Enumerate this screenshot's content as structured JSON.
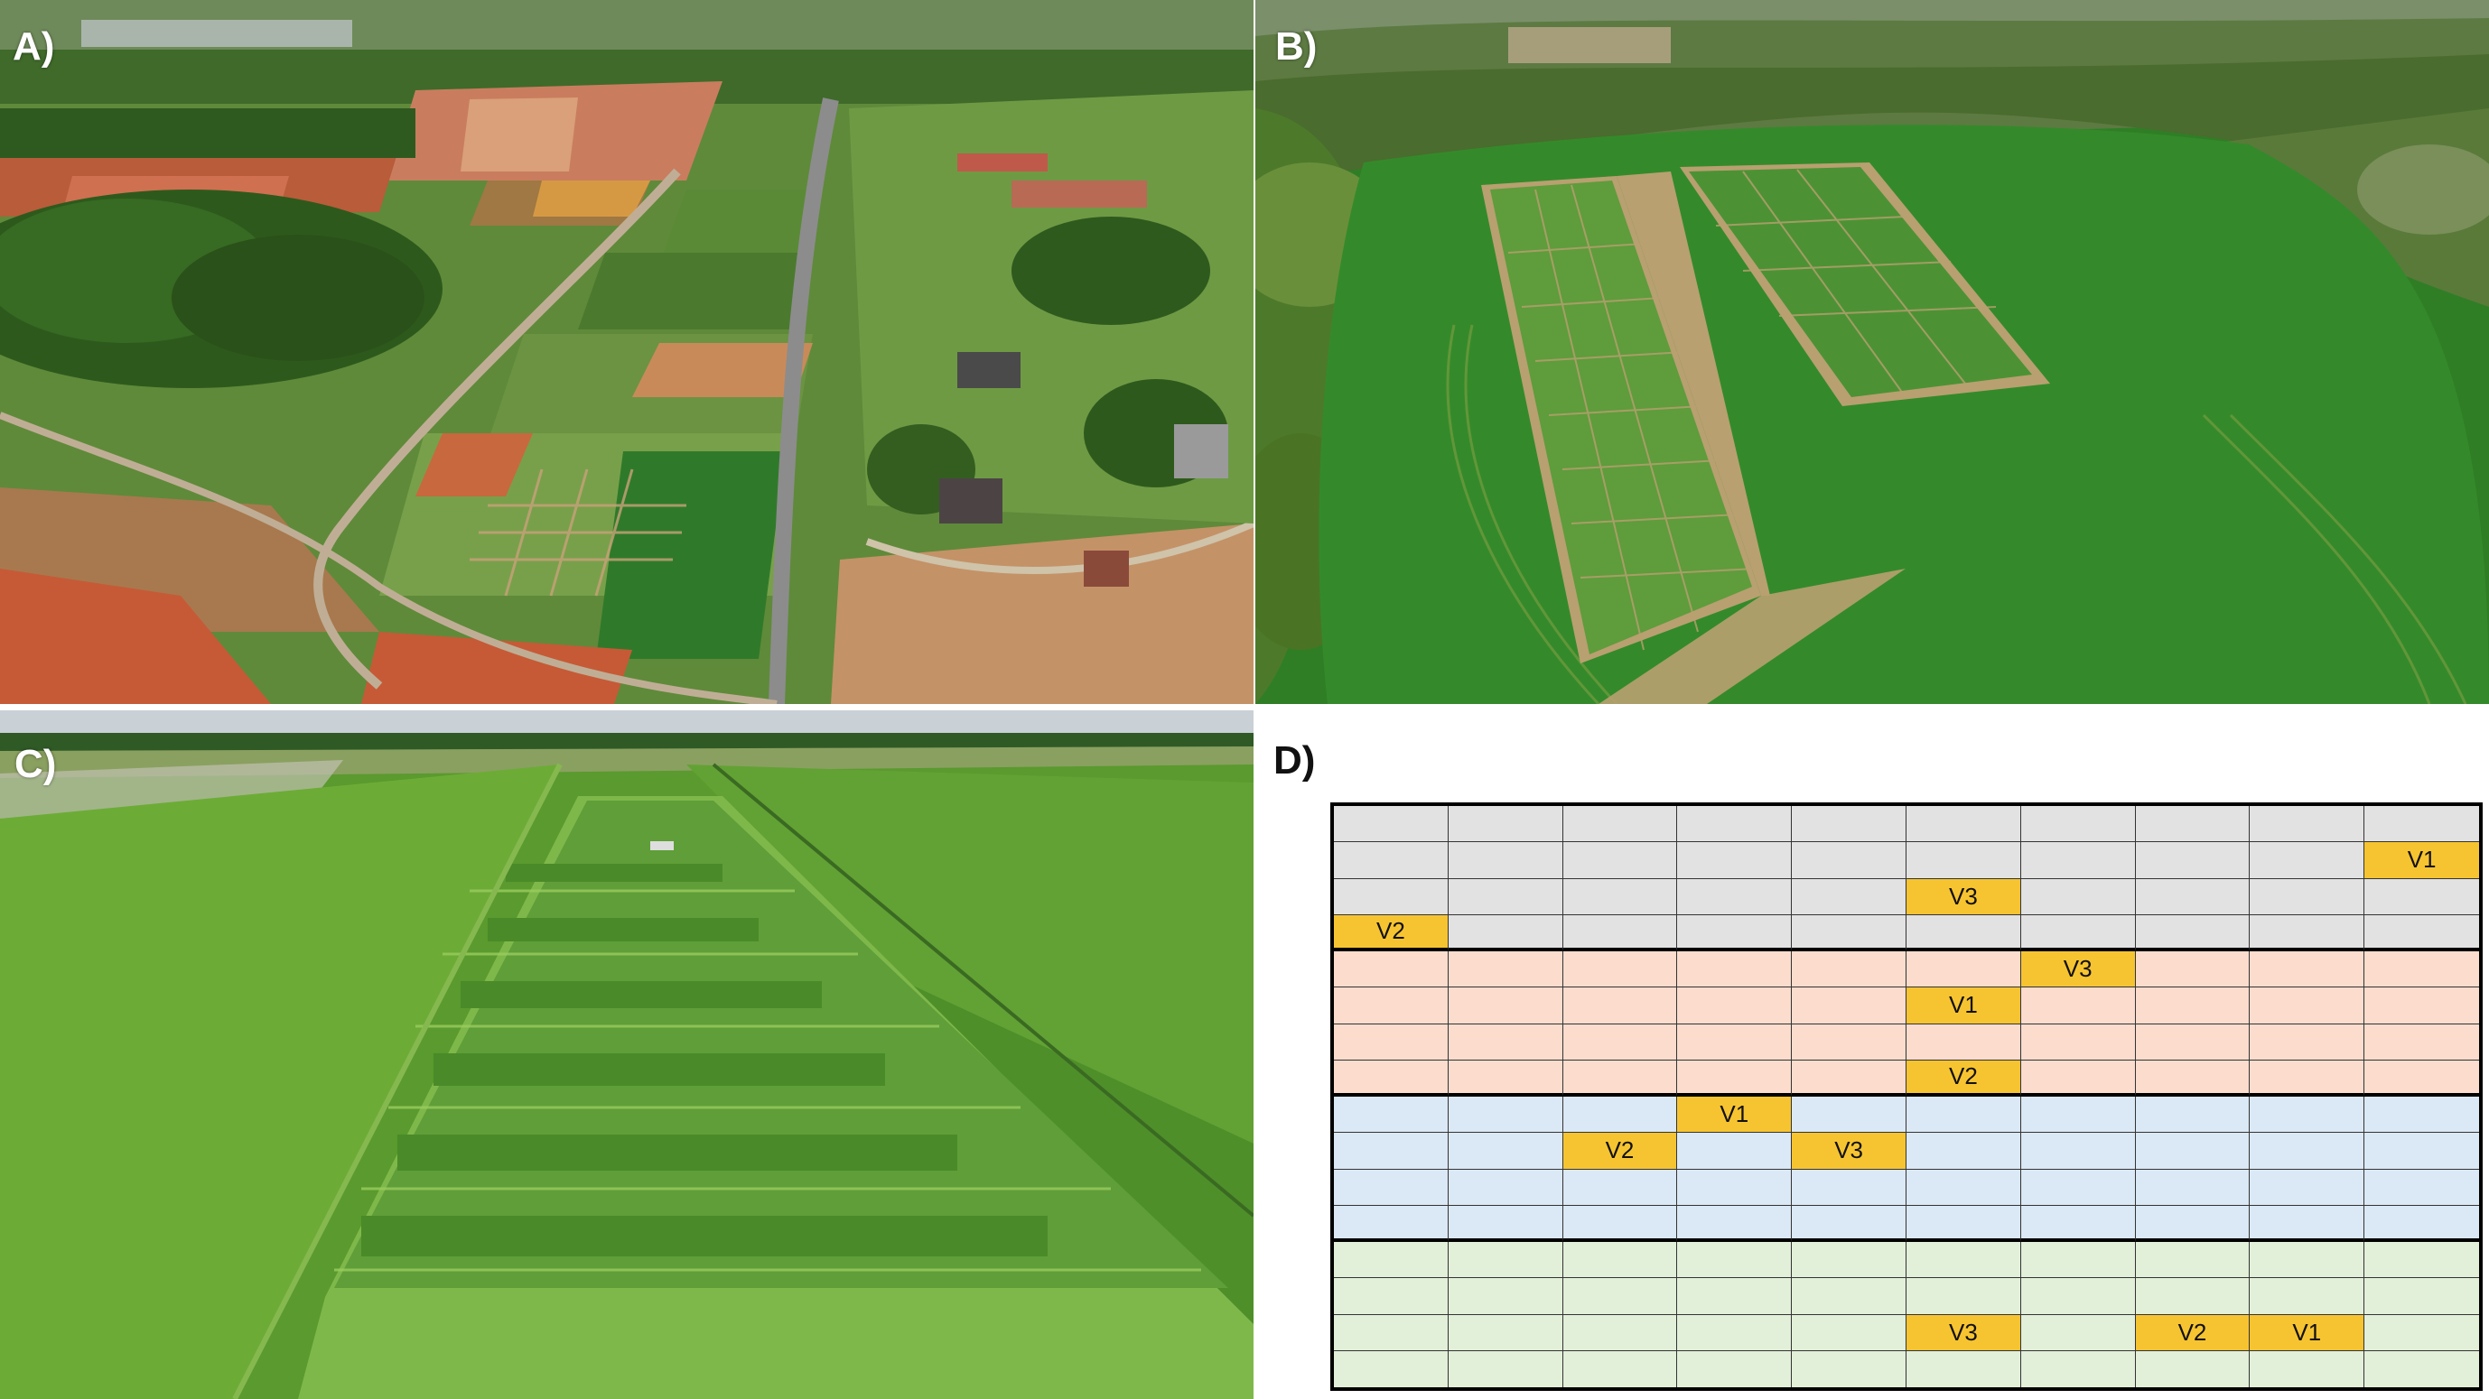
{
  "panels": {
    "a": {
      "label": "A)"
    },
    "b": {
      "label": "B)"
    },
    "c": {
      "label": "C)"
    },
    "d": {
      "label": "D)"
    }
  },
  "grid": {
    "columns": 10,
    "blocks": [
      {
        "rows": 4,
        "color": "#e2e2e2"
      },
      {
        "rows": 4,
        "color": "#fbdccd"
      },
      {
        "rows": 4,
        "color": "#dbe8f5"
      },
      {
        "rows": 4,
        "color": "#e2efd9"
      }
    ],
    "highlight_color": "#f7c431",
    "highlights": [
      {
        "row": 1,
        "col": 9,
        "label": "V1"
      },
      {
        "row": 2,
        "col": 5,
        "label": "V3"
      },
      {
        "row": 3,
        "col": 0,
        "label": "V2"
      },
      {
        "row": 4,
        "col": 6,
        "label": "V3"
      },
      {
        "row": 5,
        "col": 5,
        "label": "V1"
      },
      {
        "row": 7,
        "col": 5,
        "label": "V2"
      },
      {
        "row": 8,
        "col": 3,
        "label": "V1"
      },
      {
        "row": 9,
        "col": 2,
        "label": "V2"
      },
      {
        "row": 9,
        "col": 4,
        "label": "V3"
      },
      {
        "row": 14,
        "col": 5,
        "label": "V3"
      },
      {
        "row": 14,
        "col": 7,
        "label": "V2"
      },
      {
        "row": 14,
        "col": 8,
        "label": "V1"
      }
    ]
  }
}
